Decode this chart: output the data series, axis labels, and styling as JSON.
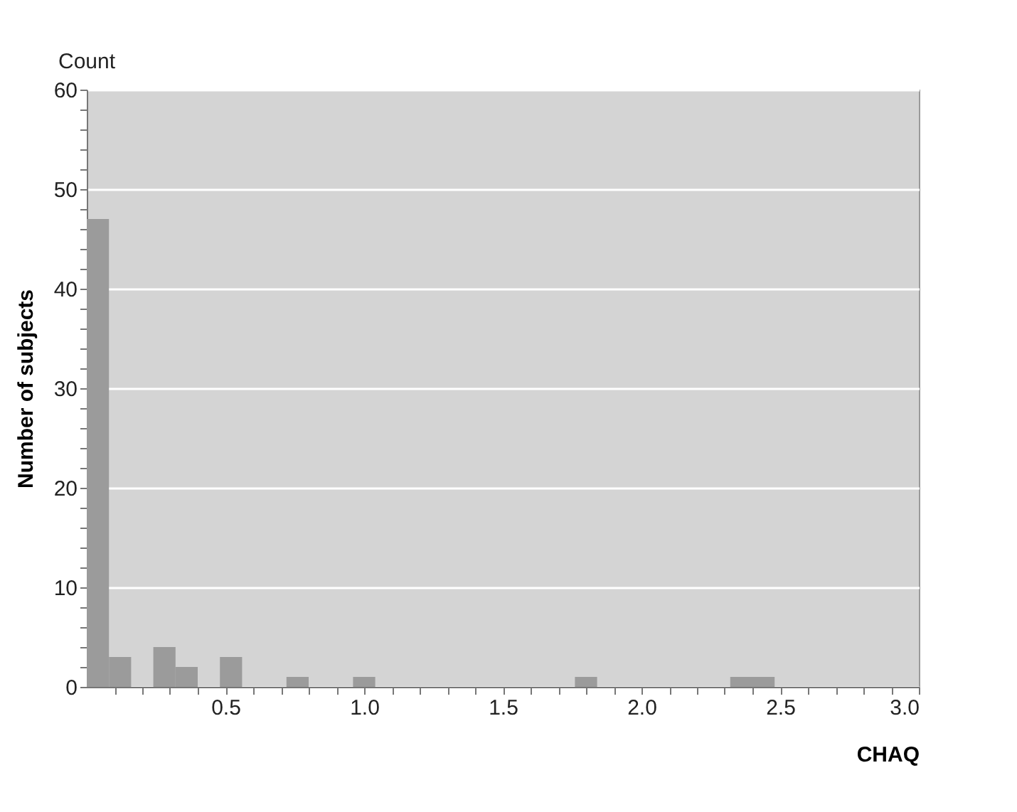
{
  "chart_data": {
    "type": "histogram",
    "xlabel": "CHAQ",
    "ylabel": "Number of subjects",
    "annotations": [
      "Count"
    ],
    "bins": [
      0,
      0.08,
      0.16,
      0.24,
      0.32,
      0.4,
      0.48,
      0.56,
      0.64,
      0.72,
      0.8,
      0.88,
      0.96,
      1.04,
      1.12,
      1.2,
      1.28,
      1.36,
      1.44,
      1.52,
      1.6,
      1.68,
      1.76,
      1.84,
      1.92,
      2,
      2.08,
      2.16,
      2.24,
      2.32,
      2.4,
      2.48
    ],
    "values": [
      47,
      3,
      0,
      4,
      2,
      0,
      3,
      0,
      0,
      1,
      0,
      0,
      1,
      0,
      0,
      0,
      0,
      0,
      0,
      0,
      0,
      0,
      1,
      0,
      0,
      0,
      0,
      0,
      0,
      1,
      1
    ],
    "color": "#9b9b9b",
    "xlim": [
      0,
      3
    ],
    "ylim": [
      0,
      60
    ],
    "xticks": [
      {
        "value": 0.1,
        "label": null
      },
      {
        "value": 0.2,
        "label": null
      },
      {
        "value": 0.3,
        "label": null
      },
      {
        "value": 0.4,
        "label": null
      },
      {
        "value": 0.5,
        "label": "0.5"
      },
      {
        "value": 0.6,
        "label": null
      },
      {
        "value": 0.7,
        "label": null
      },
      {
        "value": 0.8,
        "label": null
      },
      {
        "value": 0.9,
        "label": null
      },
      {
        "value": 1,
        "label": "1.0"
      },
      {
        "value": 1.1,
        "label": null
      },
      {
        "value": 1.2,
        "label": null
      },
      {
        "value": 1.3,
        "label": null
      },
      {
        "value": 1.4,
        "label": null
      },
      {
        "value": 1.5,
        "label": "1.5"
      },
      {
        "value": 1.6,
        "label": null
      },
      {
        "value": 1.7,
        "label": null
      },
      {
        "value": 1.8,
        "label": null
      },
      {
        "value": 1.9,
        "label": null
      },
      {
        "value": 2,
        "label": "2.0"
      },
      {
        "value": 2.1,
        "label": null
      },
      {
        "value": 2.2,
        "label": null
      },
      {
        "value": 2.3,
        "label": null
      },
      {
        "value": 2.4,
        "label": null
      },
      {
        "value": 2.5,
        "label": "2.5"
      },
      {
        "value": 2.6,
        "label": null
      },
      {
        "value": 2.7,
        "label": null
      },
      {
        "value": 2.8,
        "label": null
      },
      {
        "value": 2.9,
        "label": null
      },
      {
        "value": 3,
        "label": "3.0"
      }
    ],
    "yticks": [
      0,
      {
        "value": 2,
        "label": null
      },
      {
        "value": 4,
        "label": null
      },
      {
        "value": 6,
        "label": null
      },
      {
        "value": 8,
        "label": null
      },
      10,
      {
        "value": 12,
        "label": null
      },
      {
        "value": 14,
        "label": null
      },
      {
        "value": 16,
        "label": null
      },
      {
        "value": 18,
        "label": null
      },
      20,
      {
        "value": 22,
        "label": null
      },
      {
        "value": 24,
        "label": null
      },
      {
        "value": 26,
        "label": null
      },
      {
        "value": 28,
        "label": null
      },
      30,
      {
        "value": 32,
        "label": null
      },
      {
        "value": 34,
        "label": null
      },
      {
        "value": 36,
        "label": null
      },
      {
        "value": 38,
        "label": null
      },
      40,
      {
        "value": 42,
        "label": null
      },
      {
        "value": 44,
        "label": null
      },
      {
        "value": 46,
        "label": null
      },
      {
        "value": 48,
        "label": null
      },
      50,
      {
        "value": 52,
        "label": null
      },
      {
        "value": 54,
        "label": null
      },
      {
        "value": 56,
        "label": null
      },
      {
        "value": 58,
        "label": null
      },
      60
    ],
    "grid": "y"
  }
}
